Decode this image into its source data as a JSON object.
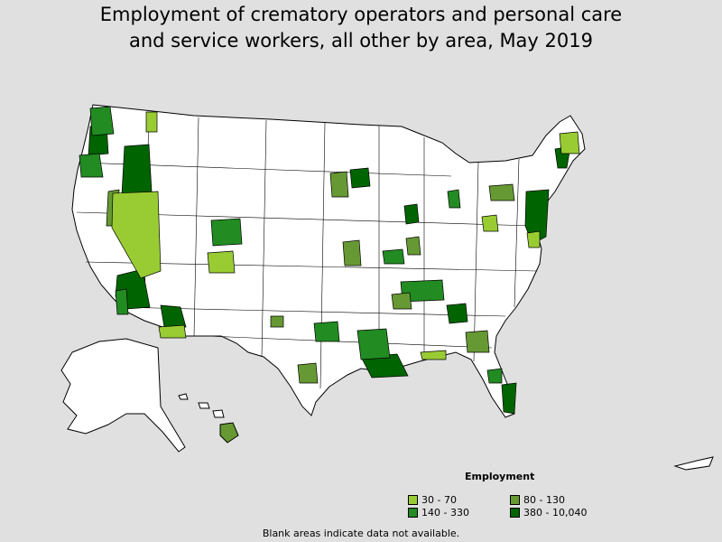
{
  "title_line1": "Employment of crematory operators and personal care",
  "title_line2": "and service workers, all other by area, May 2019",
  "legend": {
    "title": "Employment",
    "items": [
      {
        "label": "30 - 70",
        "color": "#99cc33"
      },
      {
        "label": "80 - 130",
        "color": "#669933"
      },
      {
        "label": "140 - 330",
        "color": "#228b22"
      },
      {
        "label": "380 - 10,040",
        "color": "#006400"
      }
    ]
  },
  "footnote": "Blank areas indicate data not available.",
  "colors": {
    "background": "#e0e0e0",
    "no_data": "#ffffff",
    "border": "#000000"
  }
}
